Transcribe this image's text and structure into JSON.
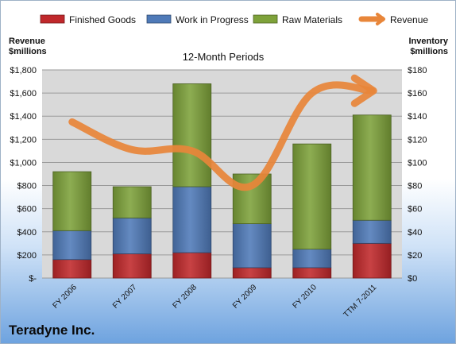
{
  "company_name": "Teradyne Inc.",
  "chart_data": {
    "type": "bar",
    "subtype": "stacked bar with line overlay",
    "title": "12-Month Periods",
    "categories": [
      "FY 2006",
      "FY 2007",
      "FY 2008",
      "FY 2009",
      "FY 2010",
      "TTM 7-2011"
    ],
    "series": [
      {
        "name": "Finished Goods",
        "values": [
          16,
          21,
          22,
          9,
          9,
          30
        ],
        "axis": "right",
        "color": "#c0282b"
      },
      {
        "name": "Work in Progress",
        "values": [
          25,
          31,
          57,
          38,
          16,
          20
        ],
        "axis": "right",
        "color": "#4f7ab8"
      },
      {
        "name": "Raw Materials",
        "values": [
          51,
          27,
          89,
          43,
          91,
          91
        ],
        "axis": "right",
        "color": "#7ea23a"
      },
      {
        "name": "Revenue",
        "type": "line",
        "values": [
          1350,
          1110,
          1100,
          800,
          1600,
          1620
        ],
        "axis": "left",
        "color": "#e8863a"
      }
    ],
    "left_axis": {
      "label_lines": [
        "Revenue",
        "$millions"
      ],
      "ylim": [
        0,
        1800
      ],
      "ticks": [
        "$-",
        "$200",
        "$400",
        "$600",
        "$800",
        "$1,000",
        "$1,200",
        "$1,400",
        "$1,600",
        "$1,800"
      ]
    },
    "right_axis": {
      "label_lines": [
        "Inventory",
        "$millions"
      ],
      "ylim": [
        0,
        180
      ],
      "ticks": [
        "$0",
        "$20",
        "$40",
        "$60",
        "$80",
        "$100",
        "$120",
        "$140",
        "$160",
        "$180"
      ]
    },
    "grid": true,
    "legend": "top"
  }
}
